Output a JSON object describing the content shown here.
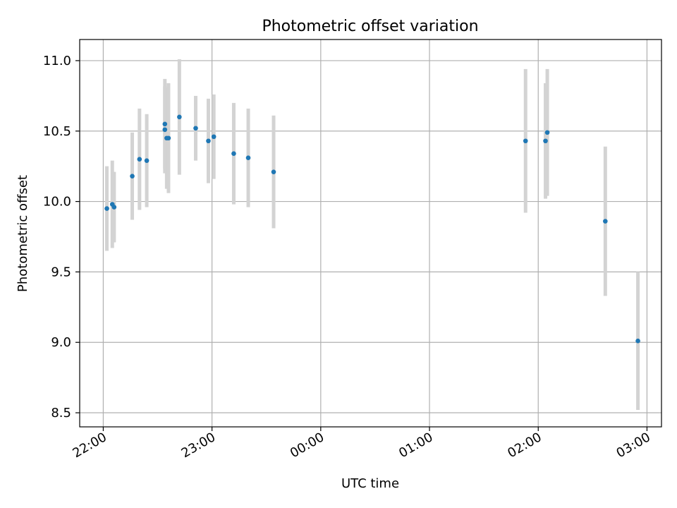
{
  "chart_data": {
    "type": "scatter",
    "title": "Photometric offset variation",
    "xlabel": "UTC time",
    "ylabel": "Photometric offset",
    "x_ticks": [
      "22:00",
      "23:00",
      "00:00",
      "01:00",
      "02:00",
      "03:00"
    ],
    "y_ticks": [
      "8.5",
      "9.0",
      "9.5",
      "10.0",
      "10.5",
      "11.0"
    ],
    "xlim": [
      "21:47",
      "03:08"
    ],
    "ylim": [
      8.4,
      11.15
    ],
    "grid": true,
    "colors": {
      "point": "#1f77b4",
      "errorbar": "#d3d3d3",
      "grid": "#b0b0b0"
    },
    "series": [
      {
        "points": [
          {
            "x": "22:02",
            "y": 9.95,
            "err": 0.3
          },
          {
            "x": "22:05",
            "y": 9.98,
            "err": 0.31
          },
          {
            "x": "22:06",
            "y": 9.96,
            "err": 0.25
          },
          {
            "x": "22:16",
            "y": 10.18,
            "err": 0.31
          },
          {
            "x": "22:20",
            "y": 10.3,
            "err": 0.36
          },
          {
            "x": "22:24",
            "y": 10.29,
            "err": 0.33
          },
          {
            "x": "22:34",
            "y": 10.51,
            "err": 0.31
          },
          {
            "x": "22:34",
            "y": 10.55,
            "err": 0.32
          },
          {
            "x": "22:35",
            "y": 10.45,
            "err": 0.36
          },
          {
            "x": "22:36",
            "y": 10.45,
            "err": 0.39
          },
          {
            "x": "22:42",
            "y": 10.6,
            "err": 0.41
          },
          {
            "x": "22:51",
            "y": 10.52,
            "err": 0.23
          },
          {
            "x": "22:58",
            "y": 10.43,
            "err": 0.3
          },
          {
            "x": "23:01",
            "y": 10.46,
            "err": 0.3
          },
          {
            "x": "23:12",
            "y": 10.34,
            "err": 0.36
          },
          {
            "x": "23:20",
            "y": 10.31,
            "err": 0.35
          },
          {
            "x": "23:34",
            "y": 10.21,
            "err": 0.4
          },
          {
            "x": "01:53",
            "y": 10.43,
            "err": 0.51
          },
          {
            "x": "02:04",
            "y": 10.43,
            "err": 0.41
          },
          {
            "x": "02:05",
            "y": 10.49,
            "err": 0.45
          },
          {
            "x": "02:37",
            "y": 9.86,
            "err": 0.53
          },
          {
            "x": "02:55",
            "y": 9.01,
            "err": 0.49
          }
        ]
      }
    ]
  }
}
